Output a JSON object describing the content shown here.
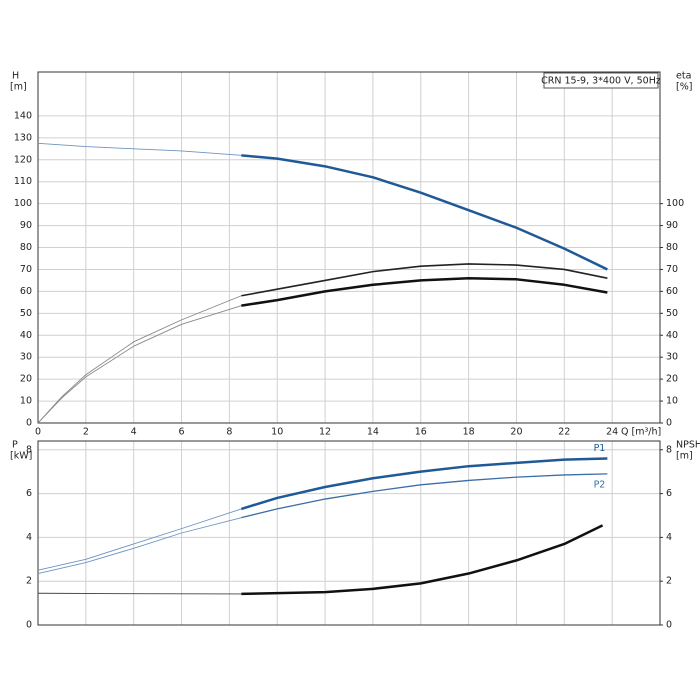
{
  "chart_data": [
    {
      "type": "line",
      "ylabel": "H",
      "yunit": "[m]",
      "y2label": "eta",
      "y2unit": "[%]",
      "xlabel": "Q [m³/h]",
      "title": "CRN 15-9, 3*400 V, 50Hz",
      "xlim": [
        0,
        26
      ],
      "xticks": [
        0,
        2,
        4,
        6,
        8,
        10,
        12,
        14,
        16,
        18,
        20,
        22,
        24
      ],
      "ylim": [
        0,
        160
      ],
      "yticks": [
        0,
        10,
        20,
        30,
        40,
        50,
        60,
        70,
        80,
        90,
        100,
        110,
        120,
        130,
        140
      ],
      "y2lim": [
        0,
        160
      ],
      "y2ticks": [
        0,
        10,
        20,
        30,
        40,
        50,
        60,
        70,
        80,
        90,
        100
      ],
      "grid": true,
      "series": [
        {
          "color": "#6f93bf",
          "width": 0.9,
          "x": [
            0,
            2,
            4,
            6,
            8.5
          ],
          "values": [
            127.5,
            126,
            125,
            124,
            122
          ]
        },
        {
          "color": "#1f5a96",
          "width": 2.5,
          "x": [
            8.5,
            10,
            12,
            14,
            16,
            18,
            20,
            22,
            23.8
          ],
          "values": [
            122,
            120.5,
            117,
            112,
            105,
            97,
            89,
            79.5,
            70
          ]
        },
        {
          "color": "#888888",
          "width": 0.9,
          "axis": "y2",
          "x": [
            0,
            1,
            2,
            4,
            6,
            8.5
          ],
          "values": [
            0,
            12,
            22,
            37,
            47,
            58
          ]
        },
        {
          "color": "#222222",
          "width": 1.6,
          "axis": "y2",
          "x": [
            8.5,
            10,
            12,
            14,
            16,
            18,
            20,
            22,
            23.8
          ],
          "values": [
            58,
            61,
            65,
            69,
            71.5,
            72.5,
            72,
            70,
            66
          ]
        },
        {
          "color": "#888888",
          "width": 0.9,
          "axis": "y2",
          "x": [
            0,
            1,
            2,
            4,
            6,
            8.5
          ],
          "values": [
            0,
            11.5,
            21,
            35,
            45,
            53.5
          ]
        },
        {
          "color": "#111111",
          "width": 2.5,
          "axis": "y2",
          "x": [
            8.5,
            10,
            12,
            14,
            16,
            18,
            20,
            22,
            23.8
          ],
          "values": [
            53.5,
            56,
            60,
            63,
            65,
            66,
            65.5,
            63,
            59.5
          ]
        }
      ]
    },
    {
      "type": "line",
      "ylabel": "P",
      "yunit": "[kW]",
      "y2label": "NPSH",
      "y2unit": "[m]",
      "xlim": [
        0,
        26
      ],
      "xticks": [
        0,
        2,
        4,
        6,
        8,
        10,
        12,
        14,
        16,
        18,
        20,
        22,
        24
      ],
      "ylim": [
        0,
        8.4
      ],
      "yticks": [
        0,
        2,
        4,
        6,
        8
      ],
      "y2lim": [
        0,
        8.4
      ],
      "y2ticks": [
        0,
        2,
        4,
        6,
        8
      ],
      "grid": true,
      "series": [
        {
          "color": "#6f93bf",
          "width": 0.9,
          "x": [
            0,
            2,
            4,
            6,
            8.5
          ],
          "values": [
            2.5,
            3.0,
            3.7,
            4.4,
            5.3
          ]
        },
        {
          "name": "P1",
          "color": "#1f5a96",
          "width": 2.5,
          "x": [
            8.5,
            10,
            12,
            14,
            16,
            18,
            20,
            22,
            23.8
          ],
          "values": [
            5.3,
            5.8,
            6.3,
            6.7,
            7.0,
            7.25,
            7.4,
            7.55,
            7.6
          ]
        },
        {
          "color": "#6f93bf",
          "width": 0.9,
          "x": [
            0,
            2,
            4,
            6,
            8.5
          ],
          "values": [
            2.35,
            2.85,
            3.5,
            4.2,
            4.9
          ]
        },
        {
          "name": "P2",
          "color": "#3a6ea8",
          "width": 1.3,
          "x": [
            8.5,
            10,
            12,
            14,
            16,
            18,
            20,
            22,
            23.8
          ],
          "values": [
            4.9,
            5.3,
            5.75,
            6.1,
            6.4,
            6.6,
            6.75,
            6.85,
            6.9
          ]
        },
        {
          "color": "#444444",
          "width": 0.9,
          "axis": "y2",
          "x": [
            0,
            4,
            8.5
          ],
          "values": [
            1.45,
            1.43,
            1.42
          ]
        },
        {
          "color": "#111111",
          "width": 2.5,
          "axis": "y2",
          "x": [
            8.5,
            12,
            14,
            16,
            18,
            20,
            22,
            23.6
          ],
          "values": [
            1.42,
            1.5,
            1.65,
            1.9,
            2.35,
            2.95,
            3.7,
            4.55
          ]
        }
      ]
    }
  ]
}
